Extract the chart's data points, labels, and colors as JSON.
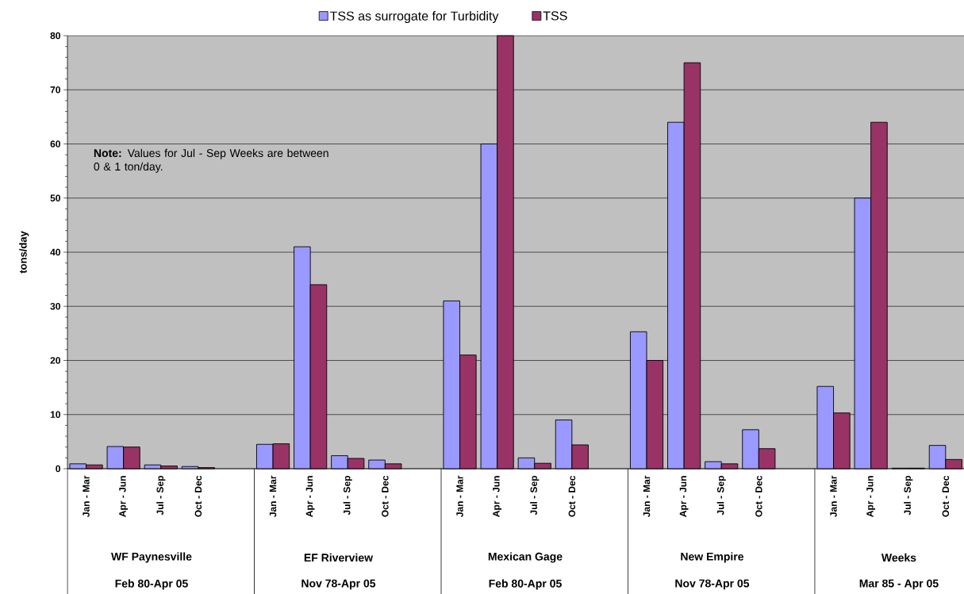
{
  "chart_data": {
    "type": "bar",
    "ylabel": "tons/day",
    "grid": "y",
    "legend": "top",
    "categories": [
      "Jan - Mar",
      "Apr - Jun",
      "Jul - Sep",
      "Oct - Dec",
      null,
      "Jan - Mar",
      "Apr - Jun",
      "Jul - Sep",
      "Oct - Dec",
      null,
      "Jan - Mar",
      "Apr - Jun",
      "Jul - Sep",
      "Oct - Dec",
      null,
      "Jan - Mar",
      "Apr - Jun",
      "Jul - Sep",
      "Oct - Dec",
      null,
      "Jan - Mar",
      "Apr - Jun",
      "Jul - Sep",
      "Oct - Dec"
    ],
    "series": [
      {
        "name": "TSS as surrogate for Turbidity",
        "color": "#9999ff",
        "values": [
          0.9,
          4.1,
          0.7,
          0.4,
          null,
          4.5,
          41,
          2.4,
          1.6,
          null,
          31,
          60,
          2.0,
          9.0,
          null,
          25.3,
          64,
          1.3,
          7.2,
          null,
          15.2,
          50,
          0.1,
          4.3
        ]
      },
      {
        "name": "TSS",
        "color": "#993366",
        "values": [
          0.7,
          4.0,
          0.5,
          0.2,
          null,
          4.6,
          34,
          1.9,
          0.9,
          null,
          21,
          80,
          1.0,
          4.4,
          null,
          20,
          75,
          0.9,
          3.7,
          null,
          10.3,
          64,
          0.1,
          1.7
        ]
      }
    ],
    "ylim": [
      0,
      80
    ],
    "yticks": [
      0,
      10,
      20,
      30,
      40,
      50,
      60,
      70,
      80
    ],
    "annotations": [
      "**Note:** Values for Jul - Sep Weeks are between 0 & 1 ton/day.",
      "WF Paynesville",
      "Feb 80-Apr 05",
      "EF Riverview",
      "Nov 78-Apr 05",
      "Mexican Gage",
      "Feb 80-Apr 05",
      "New Empire",
      "Nov 78-Apr 05",
      "Weeks",
      "Mar 85 - Apr 05"
    ]
  }
}
